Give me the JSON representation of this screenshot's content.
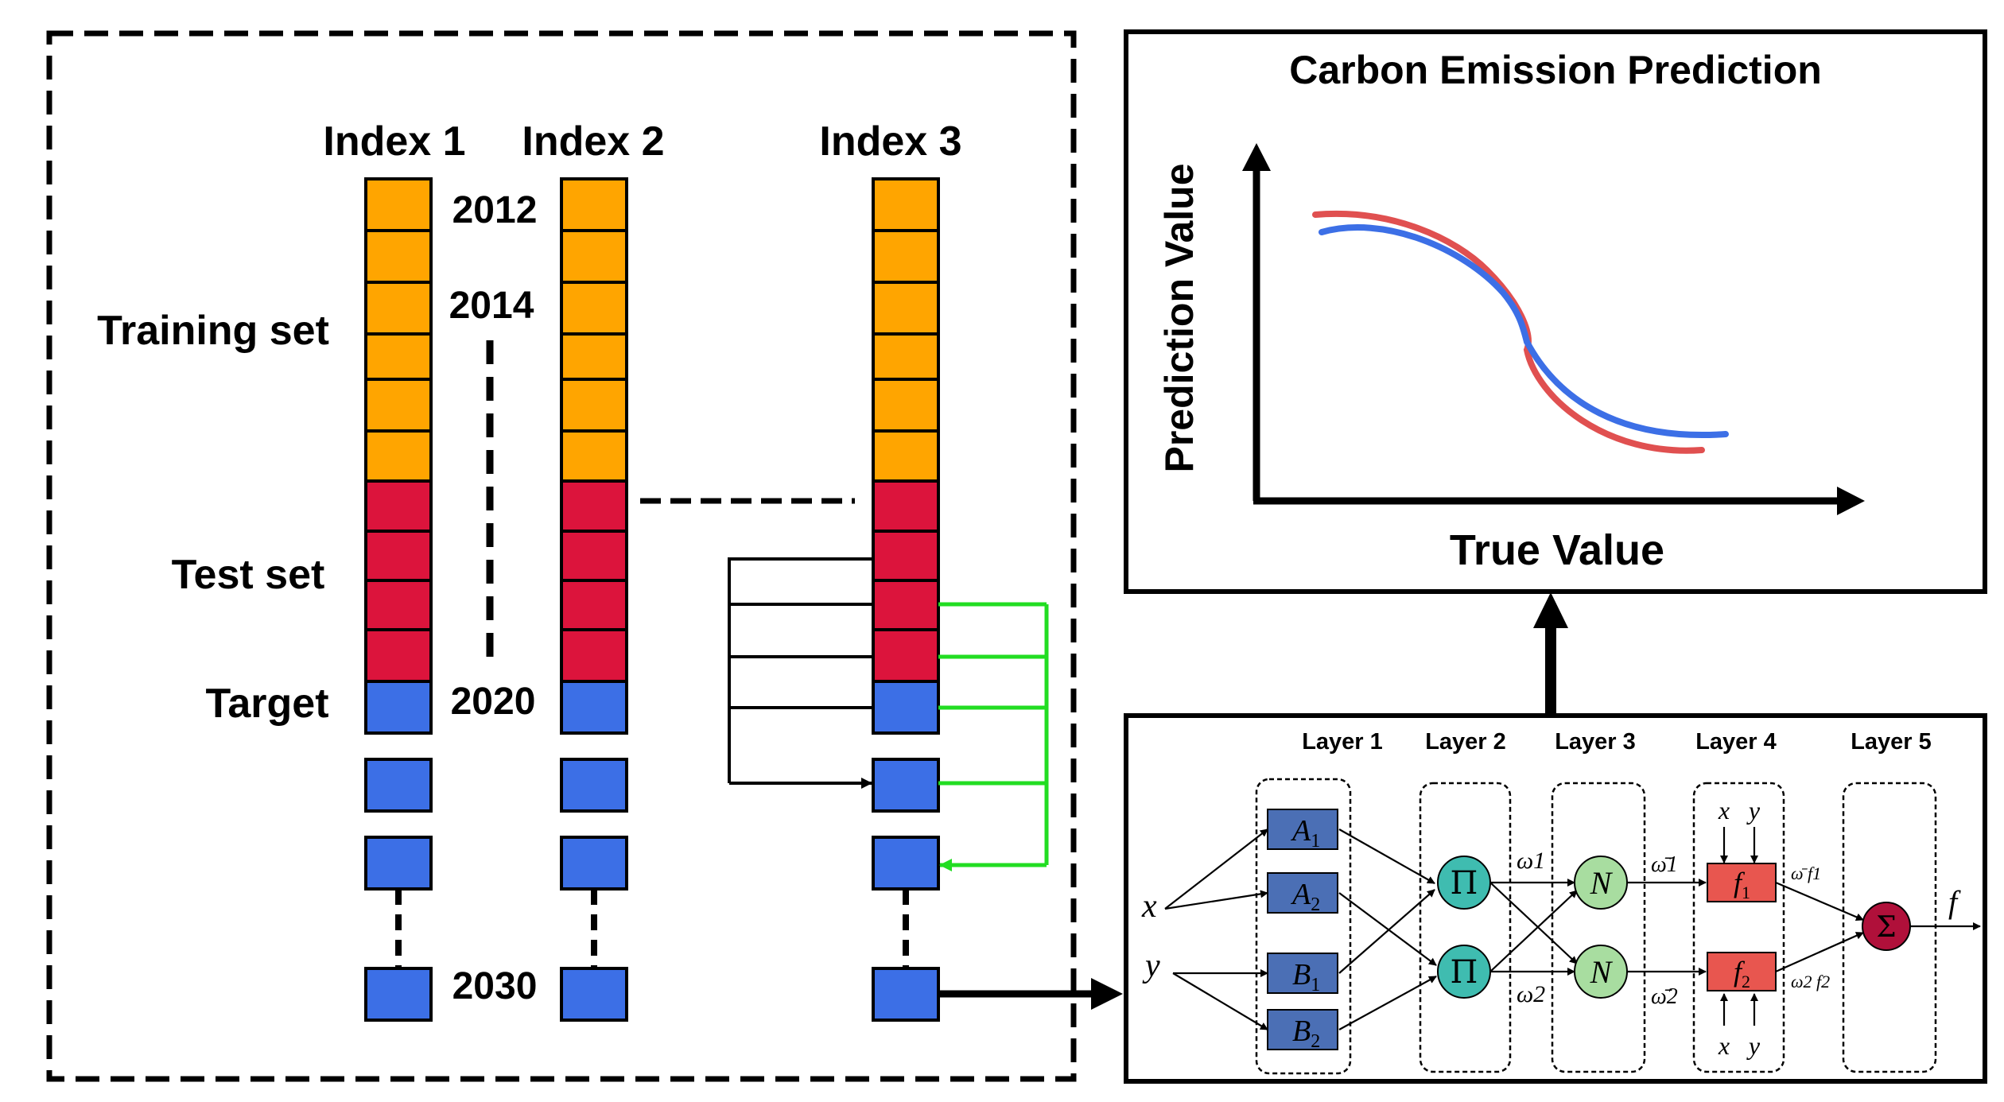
{
  "colors": {
    "train": "#ffa500",
    "test": "#dc143c",
    "target": "#3c6fe6",
    "green": "#22dd22",
    "red_curve": "#e05050",
    "blue_curve": "#3c6fe6",
    "a_box": "#4b6fb5",
    "pi_node": "#3fbcb0",
    "n_node": "#a8dda0",
    "f_box": "#e8564f",
    "sum_node": "#b0103a"
  },
  "left_panel": {
    "columns": [
      "Index 1",
      "Index 2",
      "Index 3"
    ],
    "years": {
      "y2012": "2012",
      "y2014": "2014",
      "y2020": "2020",
      "y2030": "2030"
    },
    "labels": {
      "training": "Training set",
      "test": "Test set",
      "target": "Target"
    }
  },
  "prediction_panel": {
    "title": "Carbon Emission Prediction",
    "ylabel": "Prediction Value",
    "xlabel": "True Value"
  },
  "anfis": {
    "layers": [
      "Layer 1",
      "Layer 2",
      "Layer 3",
      "Layer 4",
      "Layer 5"
    ],
    "inputs": {
      "x": "x",
      "y": "y"
    },
    "l1_nodes": [
      {
        "letter": "A",
        "sub": "1"
      },
      {
        "letter": "A",
        "sub": "2"
      },
      {
        "letter": "B",
        "sub": "1"
      },
      {
        "letter": "B",
        "sub": "2"
      }
    ],
    "pi_symbol": "Π",
    "n_symbol": "N",
    "sum_symbol": "Σ",
    "w_labels": [
      "ω1",
      "ω2"
    ],
    "wbar_labels": [
      "ω̄1",
      "ω̄2"
    ],
    "f_nodes": [
      {
        "letter": "f",
        "sub": "1"
      },
      {
        "letter": "f",
        "sub": "2"
      }
    ],
    "wf_labels": [
      "ω̄ f1",
      "ω2 f2"
    ],
    "l4_inputs": {
      "x": "x",
      "y": "y"
    },
    "output": "f"
  }
}
